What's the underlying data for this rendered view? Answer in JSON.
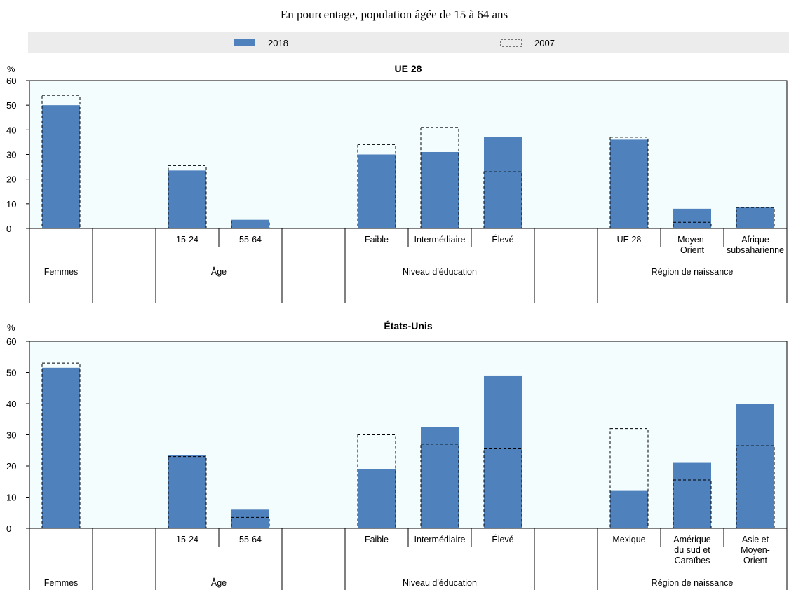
{
  "subtitle": "En pourcentage, population âgée de 15 à 64 ans",
  "legend": {
    "items": [
      {
        "label": "2018",
        "style": "solid"
      },
      {
        "label": "2007",
        "style": "dashed"
      }
    ],
    "placement": "top",
    "background": "#ececec"
  },
  "colors": {
    "bar_2018": "#4f81bd",
    "plot_bg": "#f3fdfd",
    "dash": "#000000"
  },
  "chart_data": [
    {
      "type": "bar",
      "title": "UE 28",
      "ylabel": "%",
      "ylim": [
        0,
        60
      ],
      "yticks": [
        0,
        10,
        20,
        30,
        40,
        50,
        60
      ],
      "grid": false,
      "categories": [
        "Femmes",
        "",
        "15-24",
        "55-64",
        "",
        "Faible",
        "Intermédiaire",
        "Élevé",
        "",
        "UE 28",
        "Moyen-Orient",
        "Afrique subsaharienne"
      ],
      "category_lines": [
        [],
        [],
        [
          "15-24"
        ],
        [
          "55-64"
        ],
        [],
        [
          "Faible"
        ],
        [
          "Intermédiaire"
        ],
        [
          "Élevé"
        ],
        [],
        [
          "UE 28"
        ],
        [
          "Moyen-",
          "Orient"
        ],
        [
          "Afrique",
          "subsaharienne"
        ]
      ],
      "groups": [
        "Femmes",
        "",
        "Âge",
        "",
        "Niveau d'éducation",
        "",
        "Région de naissance"
      ],
      "series": [
        {
          "name": "2018",
          "values": [
            50,
            null,
            23.5,
            3.5,
            null,
            30,
            31,
            37.2,
            null,
            36,
            8,
            8.5
          ]
        },
        {
          "name": "2007",
          "values": [
            54,
            null,
            25.5,
            3,
            null,
            34,
            41,
            23,
            null,
            37,
            2.5,
            8.5
          ]
        }
      ]
    },
    {
      "type": "bar",
      "title": "États-Unis",
      "ylabel": "%",
      "ylim": [
        0,
        60
      ],
      "yticks": [
        0,
        10,
        20,
        30,
        40,
        50,
        60
      ],
      "grid": false,
      "categories": [
        "Femmes",
        "",
        "15-24",
        "55-64",
        "",
        "Faible",
        "Intermédiaire",
        "Élevé",
        "",
        "Mexique",
        "Amérique du sud et Caraïbes",
        "Asie et Moyen-Orient"
      ],
      "category_lines": [
        [],
        [],
        [
          "15-24"
        ],
        [
          "55-64"
        ],
        [],
        [
          "Faible"
        ],
        [
          "Intermédiaire"
        ],
        [
          "Élevé"
        ],
        [],
        [
          "Mexique"
        ],
        [
          "Amérique",
          "du sud et",
          "Caraïbes"
        ],
        [
          "Asie et",
          "Moyen-",
          "Orient"
        ]
      ],
      "groups": [
        "Femmes",
        "",
        "Âge",
        "",
        "Niveau d'éducation",
        "",
        "Région de naissance"
      ],
      "series": [
        {
          "name": "2018",
          "values": [
            51.5,
            null,
            23.5,
            6,
            null,
            19,
            32.5,
            49,
            null,
            12,
            21,
            40
          ]
        },
        {
          "name": "2007",
          "values": [
            53,
            null,
            23,
            3.5,
            null,
            30,
            27,
            25.5,
            null,
            32,
            15.5,
            26.5
          ]
        }
      ]
    }
  ]
}
